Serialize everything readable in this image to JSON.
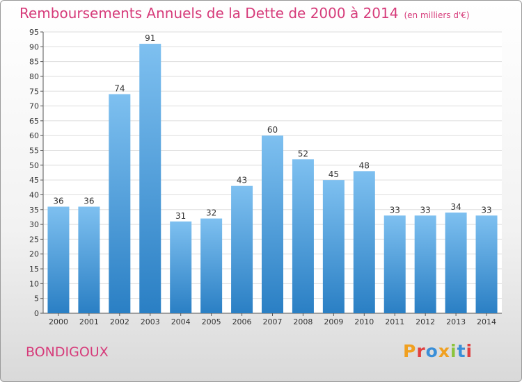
{
  "title": "Remboursements Annuels de la Dette de 2000 à 2014",
  "unit_note": "(en milliers d'€)",
  "place_name": "BONDIGOUX",
  "logo": {
    "text": "Proxiti",
    "colors": [
      "#f0a020",
      "#e04040",
      "#3a8fd8",
      "#f0a020",
      "#8cc43c",
      "#3a8fd8",
      "#e04040"
    ]
  },
  "colors": {
    "bar_top": "#7ec0f0",
    "bar_bottom": "#2a7fc4",
    "accent": "#d63b7a"
  },
  "chart_data": {
    "type": "bar",
    "categories": [
      "2000",
      "2001",
      "2002",
      "2003",
      "2004",
      "2005",
      "2006",
      "2007",
      "2008",
      "2009",
      "2010",
      "2011",
      "2012",
      "2013",
      "2014"
    ],
    "values": [
      36,
      36,
      74,
      91,
      31,
      32,
      43,
      60,
      52,
      45,
      48,
      33,
      33,
      34,
      33
    ],
    "title": "Remboursements Annuels de la Dette de 2000 à 2014",
    "ylim": [
      0,
      95
    ],
    "yticks": [
      0,
      5,
      10,
      15,
      20,
      25,
      30,
      35,
      40,
      45,
      50,
      55,
      60,
      65,
      70,
      75,
      80,
      85,
      90,
      95
    ],
    "grid": true,
    "data_labels": true
  }
}
